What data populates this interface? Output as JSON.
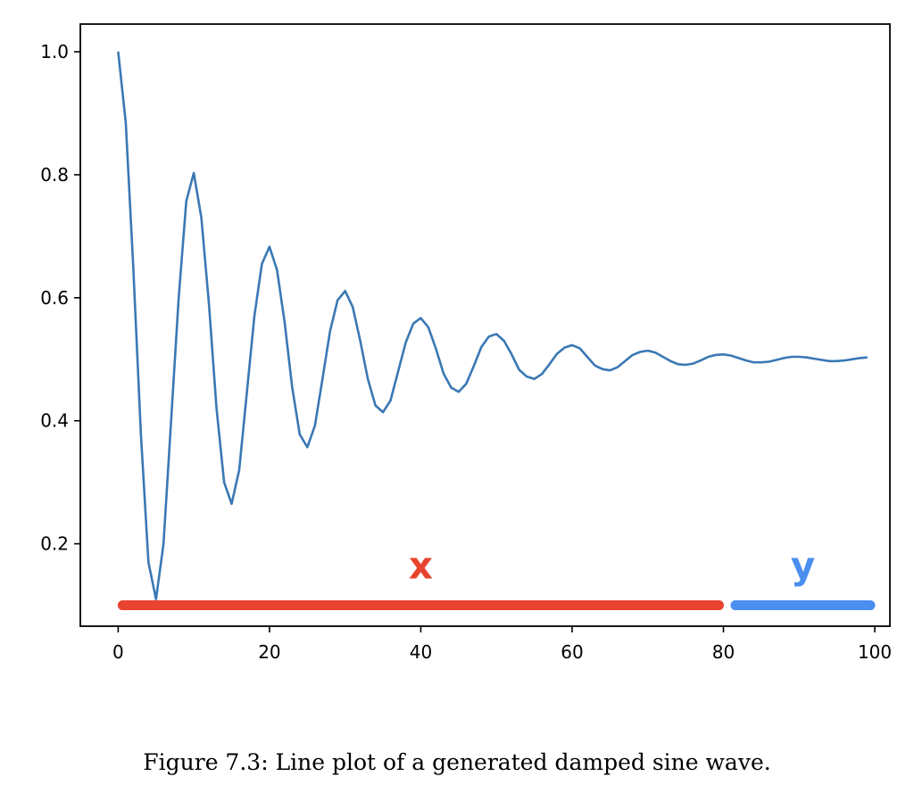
{
  "chart_data": {
    "type": "line",
    "title": "",
    "xlabel": "",
    "ylabel": "",
    "xlim": [
      -5,
      102
    ],
    "ylim": [
      0.066,
      1.045
    ],
    "x_ticks": [
      0,
      20,
      40,
      60,
      80,
      100
    ],
    "x_tick_labels": [
      "0",
      "20",
      "40",
      "60",
      "80",
      "100"
    ],
    "y_ticks": [
      0.2,
      0.4,
      0.6,
      0.8,
      1.0
    ],
    "y_tick_labels": [
      "0.2",
      "0.4",
      "0.6",
      "0.8",
      "1.0"
    ],
    "grid": false,
    "legend": "none",
    "series": [
      {
        "color": "#3a78b4",
        "x": [
          0,
          1,
          2,
          3,
          4,
          5,
          6,
          7,
          8,
          9,
          10,
          11,
          12,
          13,
          14,
          15,
          16,
          17,
          18,
          19,
          20,
          21,
          22,
          23,
          24,
          25,
          26,
          27,
          28,
          29,
          30,
          31,
          32,
          33,
          34,
          35,
          36,
          37,
          38,
          39,
          40,
          41,
          42,
          43,
          44,
          45,
          46,
          47,
          48,
          49,
          50,
          51,
          52,
          53,
          54,
          55,
          56,
          57,
          58,
          59,
          60,
          61,
          62,
          63,
          64,
          65,
          66,
          67,
          68,
          69,
          70,
          71,
          72,
          73,
          74,
          75,
          76,
          77,
          78,
          79,
          80,
          81,
          82,
          83,
          84,
          85,
          86,
          87,
          88,
          89,
          90,
          91,
          92,
          93,
          94,
          95,
          96,
          97,
          98,
          99
        ],
        "y": [
          1.0,
          0.885,
          0.65,
          0.38,
          0.17,
          0.11,
          0.2,
          0.4,
          0.6,
          0.757,
          0.803,
          0.73,
          0.59,
          0.42,
          0.3,
          0.265,
          0.32,
          0.445,
          0.57,
          0.655,
          0.683,
          0.645,
          0.56,
          0.455,
          0.378,
          0.357,
          0.392,
          0.468,
          0.545,
          0.596,
          0.611,
          0.585,
          0.53,
          0.468,
          0.425,
          0.414,
          0.433,
          0.48,
          0.527,
          0.558,
          0.567,
          0.552,
          0.517,
          0.477,
          0.454,
          0.447,
          0.46,
          0.489,
          0.52,
          0.537,
          0.541,
          0.53,
          0.508,
          0.483,
          0.472,
          0.468,
          0.476,
          0.492,
          0.509,
          0.519,
          0.523,
          0.518,
          0.504,
          0.49,
          0.484,
          0.482,
          0.487,
          0.497,
          0.507,
          0.512,
          0.514,
          0.511,
          0.504,
          0.497,
          0.492,
          0.491,
          0.493,
          0.498,
          0.504,
          0.507,
          0.508,
          0.506,
          0.502,
          0.498,
          0.495,
          0.495,
          0.496,
          0.499,
          0.502,
          0.504,
          0.504,
          0.503,
          0.501,
          0.499,
          0.497,
          0.497,
          0.498,
          0.5,
          0.502,
          0.503
        ]
      }
    ],
    "annotations": [
      {
        "label": "x",
        "x_start": 0,
        "x_end": 80,
        "y": 0.1,
        "color": "#e8432e"
      },
      {
        "label": "y",
        "x_start": 81,
        "x_end": 100,
        "y": 0.1,
        "color": "#4a8ef0"
      }
    ]
  },
  "caption": "Figure 7.3: Line plot of a generated damped sine wave."
}
